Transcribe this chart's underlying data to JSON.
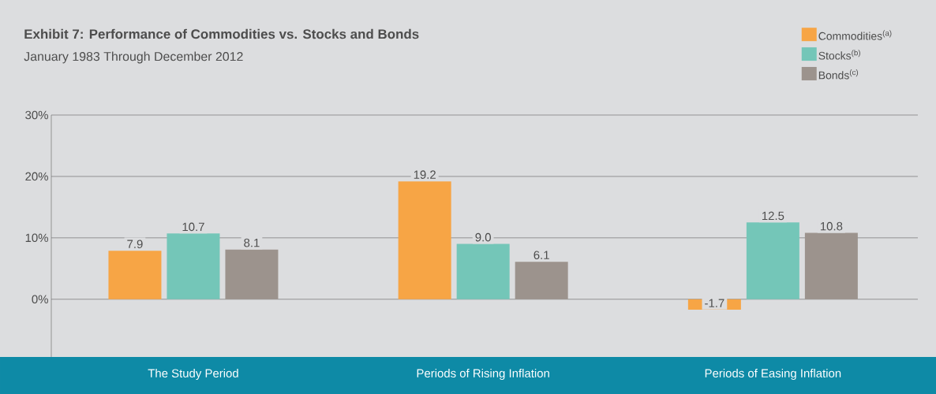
{
  "chart_data": {
    "type": "bar",
    "title": "Exhibit 7: Performance of Commodities vs. Stocks and Bonds",
    "subtitle": "January 1983 Through December 2012",
    "categories": [
      "The Study Period",
      "Periods of Rising Inflation",
      "Periods of Easing Inflation"
    ],
    "series": [
      {
        "name": "Commodities$^{(a)}$",
        "color": "#f7a545",
        "values": [
          7.9,
          19.2,
          -1.7
        ],
        "value_labels": [
          "7.9",
          "19.2",
          "-1.7"
        ]
      },
      {
        "name": "Stocks$^{(b)}$",
        "color": "#74c6b8",
        "values": [
          10.7,
          9.0,
          12.5
        ],
        "value_labels": [
          "10.7",
          "9.0",
          "12.5"
        ]
      },
      {
        "name": "Bonds$^{(c)}$",
        "color": "#9c938d",
        "values": [
          8.1,
          6.1,
          10.8
        ],
        "value_labels": [
          "8.1",
          "6.1",
          "10.8"
        ]
      }
    ],
    "yticks": [
      {
        "value": 0,
        "label": "0%"
      },
      {
        "value": 10,
        "label": "10%"
      },
      {
        "value": 20,
        "label": "20%"
      },
      {
        "value": 30,
        "label": "30%"
      }
    ],
    "ylim": [
      -9.4,
      30
    ],
    "grid": "y",
    "legend": "top right"
  }
}
